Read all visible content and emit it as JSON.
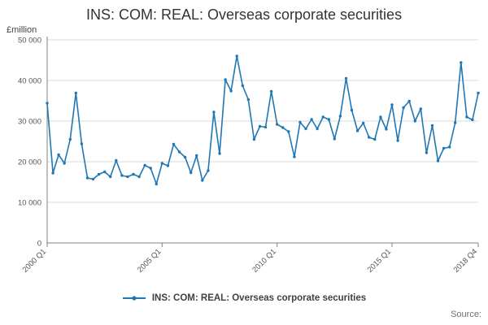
{
  "title": "INS: COM: REAL: Overseas corporate securities",
  "y_axis_unit": "£million",
  "source_label": "Source:",
  "legend": {
    "label": "INS: COM: REAL: Overseas corporate securities"
  },
  "chart_data": {
    "type": "line",
    "title": "INS: COM: REAL: Overseas corporate securities",
    "xlabel": "",
    "ylabel": "£million",
    "ylim": [
      0,
      50000
    ],
    "grid": true,
    "legend_position": "bottom",
    "line_color": "#1f77b4",
    "axis_color": "#808080",
    "grid_color": "#d9d9d9",
    "y_ticks": [
      0,
      10000,
      20000,
      30000,
      40000,
      50000
    ],
    "y_tick_labels": [
      "0",
      "10 000",
      "20 000",
      "30 000",
      "40 000",
      "50 000"
    ],
    "x_ticks": [
      {
        "index": 0,
        "label": "2000 Q1"
      },
      {
        "index": 20,
        "label": "2005 Q1"
      },
      {
        "index": 40,
        "label": "2010 Q1"
      },
      {
        "index": 60,
        "label": "2015 Q1"
      },
      {
        "index": 75,
        "label": "2018 Q4"
      }
    ],
    "categories": [
      "2000 Q1",
      "2000 Q2",
      "2000 Q3",
      "2000 Q4",
      "2001 Q1",
      "2001 Q2",
      "2001 Q3",
      "2001 Q4",
      "2002 Q1",
      "2002 Q2",
      "2002 Q3",
      "2002 Q4",
      "2003 Q1",
      "2003 Q2",
      "2003 Q3",
      "2003 Q4",
      "2004 Q1",
      "2004 Q2",
      "2004 Q3",
      "2004 Q4",
      "2005 Q1",
      "2005 Q2",
      "2005 Q3",
      "2005 Q4",
      "2006 Q1",
      "2006 Q2",
      "2006 Q3",
      "2006 Q4",
      "2007 Q1",
      "2007 Q2",
      "2007 Q3",
      "2007 Q4",
      "2008 Q1",
      "2008 Q2",
      "2008 Q3",
      "2008 Q4",
      "2009 Q1",
      "2009 Q2",
      "2009 Q3",
      "2009 Q4",
      "2010 Q1",
      "2010 Q2",
      "2010 Q3",
      "2010 Q4",
      "2011 Q1",
      "2011 Q2",
      "2011 Q3",
      "2011 Q4",
      "2012 Q1",
      "2012 Q2",
      "2012 Q3",
      "2012 Q4",
      "2013 Q1",
      "2013 Q2",
      "2013 Q3",
      "2013 Q4",
      "2014 Q1",
      "2014 Q2",
      "2014 Q3",
      "2014 Q4",
      "2015 Q1",
      "2015 Q2",
      "2015 Q3",
      "2015 Q4",
      "2016 Q1",
      "2016 Q2",
      "2016 Q3",
      "2016 Q4",
      "2017 Q1",
      "2017 Q2",
      "2017 Q3",
      "2017 Q4",
      "2018 Q1",
      "2018 Q2",
      "2018 Q3",
      "2018 Q4"
    ],
    "series": [
      {
        "name": "INS: COM: REAL: Overseas corporate securities",
        "values": [
          34400,
          17200,
          21700,
          19600,
          25500,
          36900,
          24400,
          16000,
          15700,
          16900,
          17500,
          16300,
          20300,
          16600,
          16300,
          16900,
          16300,
          19100,
          18400,
          14500,
          19600,
          19000,
          24300,
          22400,
          21100,
          17300,
          21500,
          15400,
          17800,
          32200,
          22000,
          40200,
          37400,
          46000,
          38700,
          35300,
          25500,
          28700,
          28500,
          37300,
          29200,
          28400,
          27400,
          21200,
          29700,
          28100,
          30400,
          28100,
          31000,
          30400,
          25600,
          31200,
          40500,
          32700,
          27600,
          29500,
          26000,
          25500,
          31000,
          28000,
          34000,
          25200,
          33300,
          34900,
          30000,
          33000,
          22200,
          28900,
          20200,
          23300,
          23600,
          29600,
          44400,
          31000,
          30300,
          36900
        ]
      }
    ]
  }
}
